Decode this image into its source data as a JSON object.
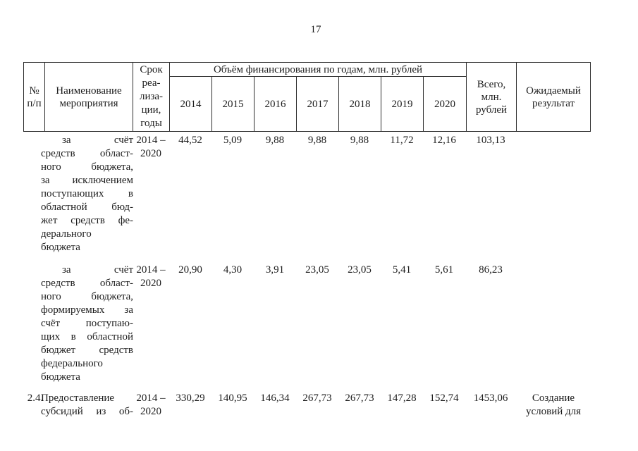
{
  "page": {
    "number": "17"
  },
  "colors": {
    "background": "#ffffff",
    "text": "#1c1c1c",
    "border": "#2e2e2e"
  },
  "table": {
    "header": {
      "col_num_lines": [
        "№",
        "п/п"
      ],
      "col_name_lines": [
        "Наименование",
        "мероприятия"
      ],
      "col_period_lines": [
        "Срок",
        "реа-",
        "лиза-",
        "ции,",
        "годы"
      ],
      "finance_span": "Объём финансирования по годам, млн. рублей",
      "years": [
        "2014",
        "2015",
        "2016",
        "2017",
        "2018",
        "2019",
        "2020"
      ],
      "col_total_lines": [
        "Всего,",
        "млн.",
        "рублей"
      ],
      "col_result_lines": [
        "Ожидаемый",
        "результат"
      ]
    },
    "rows": [
      {
        "num": "",
        "indent_first": true,
        "name_lines": [
          "за счёт",
          "средств област-",
          "ного бюджета,",
          "за исключением",
          "поступающих в",
          "областной бюд-",
          "жет средств фе-",
          "дерального",
          "бюджета"
        ],
        "period_lines": [
          "2014 –",
          "2020"
        ],
        "values": [
          "44,52",
          "5,09",
          "9,88",
          "9,88",
          "9,88",
          "11,72",
          "12,16"
        ],
        "total": "103,13",
        "result_lines": []
      },
      {
        "num": "",
        "indent_first": true,
        "name_lines": [
          "за счёт",
          "средств област-",
          "ного бюджета,",
          "формируемых за",
          "счёт поступаю-",
          "щих в областной",
          "бюджет средств",
          "федерального",
          "бюджета"
        ],
        "period_lines": [
          "2014 –",
          "2020"
        ],
        "values": [
          "20,90",
          "4,30",
          "3,91",
          "23,05",
          "23,05",
          "5,41",
          "5,61"
        ],
        "total": "86,23",
        "result_lines": []
      },
      {
        "num": "2.4.",
        "indent_first": false,
        "name_lines": [
          "Предоставление",
          "субсидий из об-"
        ],
        "period_lines": [
          "2014 –",
          "2020"
        ],
        "values": [
          "330,29",
          "140,95",
          "146,34",
          "267,73",
          "267,73",
          "147,28",
          "152,74"
        ],
        "total": "1453,06",
        "result_lines": [
          "Создание",
          "условий для"
        ]
      }
    ]
  }
}
